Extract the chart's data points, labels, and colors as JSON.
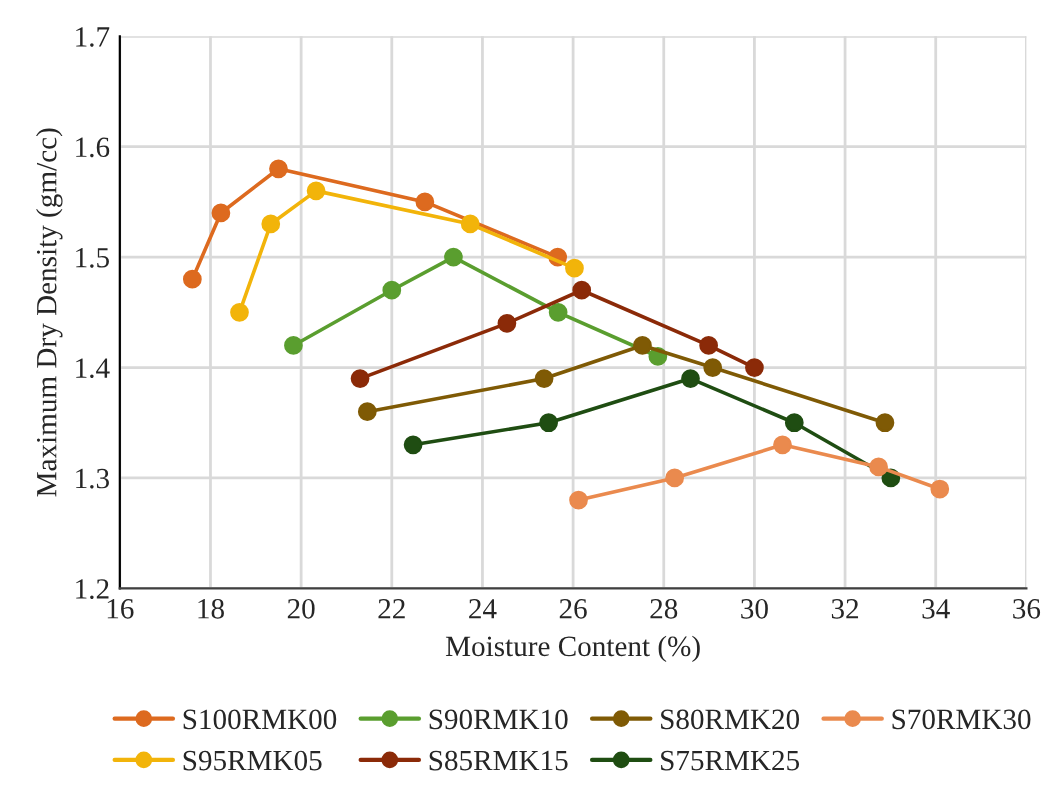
{
  "chart_data": {
    "type": "line",
    "xlabel": "Moisture Content (%)",
    "ylabel": "Maximum Dry Density (gm/cc)",
    "xlim": [
      16,
      36
    ],
    "xticks": [
      16,
      18,
      20,
      22,
      24,
      26,
      28,
      30,
      32,
      34,
      36
    ],
    "ylim": [
      1.2,
      1.7
    ],
    "yticks": [
      1.2,
      1.3,
      1.4,
      1.5,
      1.6,
      1.7
    ],
    "grid": true,
    "legend": "bottom",
    "marker": "circle",
    "line_style": "solid",
    "series": [
      {
        "name": "S100RMK00",
        "color": "#dd6a1f",
        "x": [
          17.6,
          18.23,
          19.5,
          22.73,
          25.66
        ],
        "values": [
          1.48,
          1.54,
          1.58,
          1.55,
          1.5
        ]
      },
      {
        "name": "S95RMK05",
        "color": "#f2b40a",
        "x": [
          18.64,
          19.33,
          20.33,
          23.73,
          26.03
        ],
        "values": [
          1.45,
          1.53,
          1.56,
          1.53,
          1.49
        ]
      },
      {
        "name": "S90RMK10",
        "color": "#5a9e2f",
        "x": [
          19.83,
          22.0,
          23.36,
          25.67,
          27.87
        ],
        "values": [
          1.42,
          1.47,
          1.5,
          1.45,
          1.41
        ]
      },
      {
        "name": "S85RMK15",
        "color": "#8b2a08",
        "x": [
          21.3,
          24.54,
          26.19,
          28.99,
          30.0
        ],
        "values": [
          1.39,
          1.44,
          1.47,
          1.42,
          1.4
        ]
      },
      {
        "name": "S80RMK20",
        "color": "#7f5a05",
        "x": [
          21.46,
          25.36,
          27.53,
          29.08,
          32.88
        ],
        "values": [
          1.36,
          1.39,
          1.42,
          1.4,
          1.35
        ]
      },
      {
        "name": "S75RMK25",
        "color": "#1f4d12",
        "x": [
          22.47,
          25.46,
          28.59,
          30.88,
          33.01
        ],
        "values": [
          1.33,
          1.35,
          1.39,
          1.35,
          1.3
        ]
      },
      {
        "name": "S70RMK30",
        "color": "#ea8a4e",
        "x": [
          26.12,
          28.24,
          30.62,
          32.74,
          34.09
        ],
        "values": [
          1.28,
          1.3,
          1.33,
          1.31,
          1.29
        ]
      }
    ]
  }
}
